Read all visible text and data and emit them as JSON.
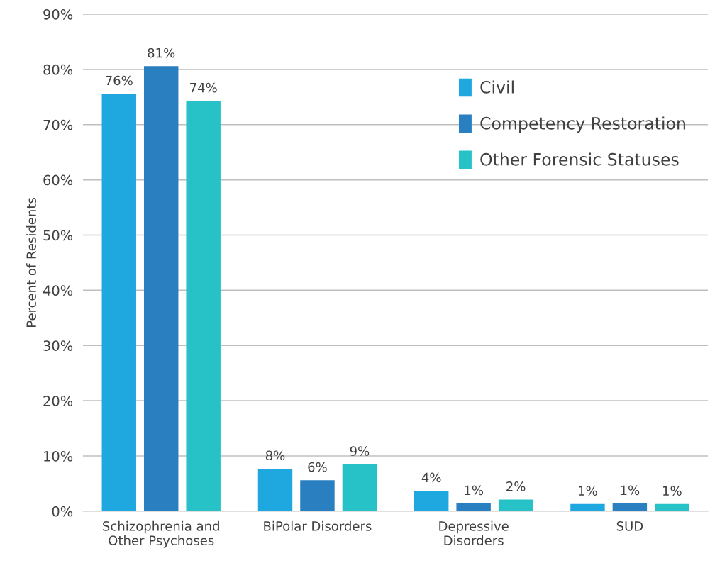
{
  "chart_data": {
    "type": "bar",
    "ylabel": "Percent of Residents",
    "categories": [
      "Schizophrenia and\nOther Psychoses",
      "BiPolar Disorders",
      "Depressive\nDisorders",
      "SUD"
    ],
    "series": [
      {
        "name": "Civil",
        "color": "#1fa8e0",
        "values": [
          75.6,
          7.7,
          3.7,
          1.3
        ],
        "value_labels": [
          "76%",
          "8%",
          "4%",
          "1%"
        ]
      },
      {
        "name": "Competency Restoration",
        "color": "#2a7fc1",
        "values": [
          80.6,
          5.6,
          1.4,
          1.4
        ],
        "value_labels": [
          "81%",
          "6%",
          "1%",
          "1%"
        ]
      },
      {
        "name": "Other Forensic Statuses",
        "color": "#26c2c8",
        "values": [
          74.3,
          8.5,
          2.1,
          1.3
        ],
        "value_labels": [
          "74%",
          "9%",
          "2%",
          "1%"
        ]
      }
    ],
    "ylim": [
      0,
      90
    ],
    "yticks": [
      {
        "value": 0,
        "label": "0%"
      },
      {
        "value": 10,
        "label": "10%"
      },
      {
        "value": 20,
        "label": "20%"
      },
      {
        "value": 30,
        "label": "30%"
      },
      {
        "value": 40,
        "label": "40%"
      },
      {
        "value": 50,
        "label": "50%"
      },
      {
        "value": 60,
        "label": "60%"
      },
      {
        "value": 70,
        "label": "70%"
      },
      {
        "value": 80,
        "label": "80%"
      },
      {
        "value": 90,
        "label": "90%"
      }
    ],
    "grid": "y",
    "legend": "top right"
  }
}
